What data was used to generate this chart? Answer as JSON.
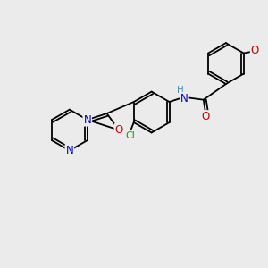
{
  "bg_color": "#ebebeb",
  "atom_colors": {
    "C": "#000000",
    "N": "#0000cc",
    "O": "#cc0000",
    "Cl": "#00aa00",
    "H": "#4a8fa8",
    "default": "#000000"
  },
  "font_size": 7.5,
  "bond_lw": 1.3,
  "scale": 0.95
}
